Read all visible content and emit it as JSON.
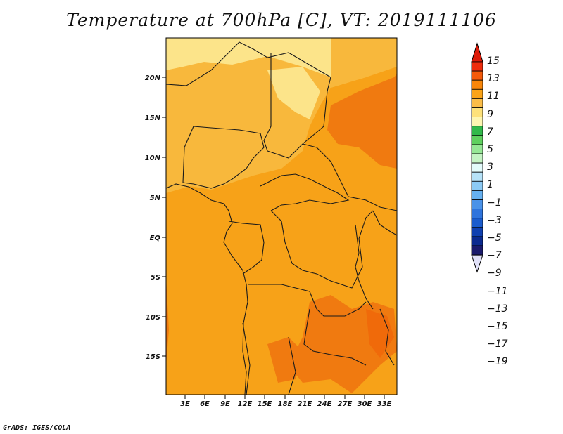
{
  "title": "Temperature at 700hPa [C], VT: 2019111106",
  "credit": "GrADS: IGES/COLA",
  "map": {
    "lon_range": [
      0,
      35
    ],
    "lat_range": [
      -20,
      24
    ],
    "lat_ticks": [
      "20N",
      "15N",
      "10N",
      "5N",
      "EQ",
      "5S",
      "10S",
      "15S"
    ],
    "lon_ticks": [
      "3E",
      "6E",
      "9E",
      "12E",
      "15E",
      "18E",
      "21E",
      "24E",
      "27E",
      "30E",
      "33E"
    ],
    "dominant_colors": {
      "pale": "#fce48a",
      "light": "#f8b83c",
      "mid": "#f7a218",
      "dark": "#f07a10",
      "darker": "#f06a0a"
    }
  },
  "colorbar": {
    "levels": [
      "15",
      "13",
      "11",
      "9",
      "7",
      "5",
      "3",
      "1",
      "−1",
      "−3",
      "−5",
      "−7",
      "−9",
      "−11",
      "−13",
      "−15",
      "−17",
      "−19"
    ],
    "colors": [
      "#ee2c0c",
      "#f45a0a",
      "#f8860a",
      "#faa318",
      "#fbbd48",
      "#fde17a",
      "#fdf6b2",
      "#31b84a",
      "#5fd05f",
      "#96e796",
      "#c4f3c4",
      "#e3fbfb",
      "#b6e2f8",
      "#8ccaf5",
      "#66b0f0",
      "#4a92e8",
      "#2f74dc",
      "#1a5ccd",
      "#0f40b0",
      "#0b2a8f",
      "#1a1a6c"
    ],
    "top_color": "#dd1a08",
    "bottom_color": "#e0e0f8"
  }
}
